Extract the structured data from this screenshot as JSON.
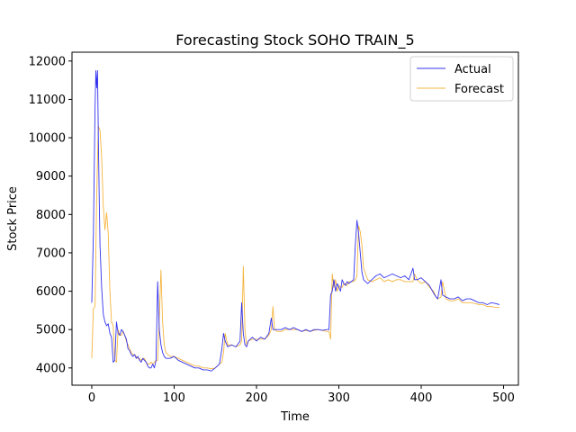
{
  "chart_data": {
    "type": "line",
    "title": "Forecasting Stock SOHO TRAIN_5",
    "xlabel": "Time",
    "ylabel": "Stock Price",
    "xlim": [
      -24,
      518
    ],
    "ylim": [
      3550,
      12230
    ],
    "xticks": [
      0,
      100,
      200,
      300,
      400,
      500
    ],
    "yticks": [
      4000,
      5000,
      6000,
      7000,
      8000,
      9000,
      10000,
      11000,
      12000
    ],
    "grid": false,
    "legend_position": "top-right",
    "series": [
      {
        "name": "Actual",
        "color": "#3333ee",
        "points": [
          [
            0,
            5700
          ],
          [
            2,
            7500
          ],
          [
            4,
            10800
          ],
          [
            5,
            11750
          ],
          [
            6,
            11300
          ],
          [
            7,
            11750
          ],
          [
            8,
            10000
          ],
          [
            9,
            8500
          ],
          [
            10,
            7200
          ],
          [
            12,
            6100
          ],
          [
            14,
            5400
          ],
          [
            16,
            5200
          ],
          [
            18,
            5100
          ],
          [
            20,
            5150
          ],
          [
            22,
            4900
          ],
          [
            24,
            4800
          ],
          [
            26,
            4150
          ],
          [
            28,
            4200
          ],
          [
            30,
            5200
          ],
          [
            32,
            4900
          ],
          [
            34,
            4850
          ],
          [
            36,
            5000
          ],
          [
            38,
            4950
          ],
          [
            40,
            4850
          ],
          [
            42,
            4750
          ],
          [
            44,
            4500
          ],
          [
            46,
            4450
          ],
          [
            48,
            4350
          ],
          [
            50,
            4300
          ],
          [
            52,
            4350
          ],
          [
            54,
            4250
          ],
          [
            56,
            4300
          ],
          [
            58,
            4200
          ],
          [
            60,
            4150
          ],
          [
            62,
            4250
          ],
          [
            64,
            4200
          ],
          [
            66,
            4150
          ],
          [
            68,
            4050
          ],
          [
            70,
            4000
          ],
          [
            72,
            4000
          ],
          [
            74,
            4100
          ],
          [
            76,
            4000
          ],
          [
            78,
            4200
          ],
          [
            80,
            6250
          ],
          [
            82,
            5000
          ],
          [
            84,
            4600
          ],
          [
            86,
            4400
          ],
          [
            88,
            4300
          ],
          [
            90,
            4250
          ],
          [
            95,
            4250
          ],
          [
            100,
            4300
          ],
          [
            105,
            4200
          ],
          [
            110,
            4150
          ],
          [
            115,
            4100
          ],
          [
            120,
            4050
          ],
          [
            125,
            4000
          ],
          [
            130,
            4000
          ],
          [
            135,
            3950
          ],
          [
            140,
            3950
          ],
          [
            145,
            3920
          ],
          [
            150,
            4000
          ],
          [
            155,
            4100
          ],
          [
            158,
            4500
          ],
          [
            160,
            4900
          ],
          [
            162,
            4700
          ],
          [
            165,
            4550
          ],
          [
            170,
            4600
          ],
          [
            175,
            4550
          ],
          [
            180,
            4700
          ],
          [
            182,
            5700
          ],
          [
            184,
            4900
          ],
          [
            186,
            4600
          ],
          [
            188,
            4550
          ],
          [
            190,
            4700
          ],
          [
            195,
            4800
          ],
          [
            200,
            4700
          ],
          [
            205,
            4800
          ],
          [
            210,
            4750
          ],
          [
            215,
            4900
          ],
          [
            218,
            5300
          ],
          [
            220,
            5000
          ],
          [
            225,
            5000
          ],
          [
            230,
            5000
          ],
          [
            235,
            5050
          ],
          [
            240,
            5000
          ],
          [
            245,
            5050
          ],
          [
            250,
            5000
          ],
          [
            255,
            4950
          ],
          [
            260,
            5000
          ],
          [
            265,
            4950
          ],
          [
            270,
            5000
          ],
          [
            275,
            5000
          ],
          [
            280,
            4980
          ],
          [
            285,
            5000
          ],
          [
            288,
            5000
          ],
          [
            290,
            5900
          ],
          [
            292,
            6000
          ],
          [
            294,
            6300
          ],
          [
            296,
            6000
          ],
          [
            298,
            6200
          ],
          [
            300,
            6100
          ],
          [
            302,
            6000
          ],
          [
            304,
            6300
          ],
          [
            306,
            6200
          ],
          [
            308,
            6150
          ],
          [
            310,
            6250
          ],
          [
            312,
            6200
          ],
          [
            315,
            6250
          ],
          [
            318,
            6300
          ],
          [
            320,
            7200
          ],
          [
            322,
            7850
          ],
          [
            324,
            7500
          ],
          [
            326,
            7000
          ],
          [
            328,
            6500
          ],
          [
            330,
            6300
          ],
          [
            335,
            6200
          ],
          [
            340,
            6300
          ],
          [
            345,
            6400
          ],
          [
            350,
            6450
          ],
          [
            355,
            6350
          ],
          [
            360,
            6400
          ],
          [
            365,
            6450
          ],
          [
            370,
            6400
          ],
          [
            375,
            6350
          ],
          [
            380,
            6400
          ],
          [
            385,
            6300
          ],
          [
            390,
            6600
          ],
          [
            392,
            6300
          ],
          [
            395,
            6300
          ],
          [
            400,
            6350
          ],
          [
            405,
            6250
          ],
          [
            410,
            6150
          ],
          [
            415,
            5950
          ],
          [
            418,
            5850
          ],
          [
            420,
            5800
          ],
          [
            424,
            6300
          ],
          [
            426,
            5900
          ],
          [
            430,
            5850
          ],
          [
            435,
            5800
          ],
          [
            440,
            5800
          ],
          [
            445,
            5850
          ],
          [
            450,
            5750
          ],
          [
            455,
            5800
          ],
          [
            460,
            5800
          ],
          [
            465,
            5750
          ],
          [
            470,
            5700
          ],
          [
            475,
            5700
          ],
          [
            480,
            5650
          ],
          [
            485,
            5700
          ],
          [
            490,
            5680
          ],
          [
            495,
            5650
          ]
        ]
      },
      {
        "name": "Forecast",
        "color": "#f5b540",
        "points": [
          [
            0,
            4250
          ],
          [
            2,
            5550
          ],
          [
            4,
            5600
          ],
          [
            6,
            8500
          ],
          [
            8,
            10300
          ],
          [
            10,
            10200
          ],
          [
            12,
            9500
          ],
          [
            14,
            8200
          ],
          [
            16,
            7600
          ],
          [
            18,
            8050
          ],
          [
            20,
            7500
          ],
          [
            22,
            6000
          ],
          [
            24,
            5200
          ],
          [
            26,
            5100
          ],
          [
            28,
            4200
          ],
          [
            30,
            4150
          ],
          [
            32,
            5000
          ],
          [
            34,
            4850
          ],
          [
            36,
            4850
          ],
          [
            38,
            4950
          ],
          [
            40,
            4850
          ],
          [
            42,
            4700
          ],
          [
            44,
            4600
          ],
          [
            46,
            4500
          ],
          [
            48,
            4400
          ],
          [
            50,
            4350
          ],
          [
            52,
            4350
          ],
          [
            54,
            4300
          ],
          [
            56,
            4250
          ],
          [
            58,
            4250
          ],
          [
            60,
            4200
          ],
          [
            62,
            4250
          ],
          [
            64,
            4250
          ],
          [
            66,
            4150
          ],
          [
            68,
            4100
          ],
          [
            70,
            4100
          ],
          [
            72,
            4150
          ],
          [
            74,
            4100
          ],
          [
            76,
            4150
          ],
          [
            78,
            4200
          ],
          [
            80,
            4200
          ],
          [
            82,
            5300
          ],
          [
            84,
            6550
          ],
          [
            86,
            5200
          ],
          [
            88,
            4600
          ],
          [
            90,
            4400
          ],
          [
            95,
            4300
          ],
          [
            100,
            4300
          ],
          [
            105,
            4250
          ],
          [
            110,
            4200
          ],
          [
            115,
            4150
          ],
          [
            120,
            4100
          ],
          [
            125,
            4050
          ],
          [
            130,
            4050
          ],
          [
            135,
            4000
          ],
          [
            140,
            4000
          ],
          [
            145,
            3980
          ],
          [
            150,
            4000
          ],
          [
            155,
            4100
          ],
          [
            158,
            4150
          ],
          [
            160,
            4400
          ],
          [
            162,
            4900
          ],
          [
            165,
            4600
          ],
          [
            170,
            4600
          ],
          [
            175,
            4550
          ],
          [
            180,
            4600
          ],
          [
            182,
            4700
          ],
          [
            184,
            6650
          ],
          [
            186,
            5000
          ],
          [
            188,
            4600
          ],
          [
            190,
            4700
          ],
          [
            195,
            4750
          ],
          [
            200,
            4750
          ],
          [
            205,
            4750
          ],
          [
            210,
            4750
          ],
          [
            215,
            4850
          ],
          [
            218,
            5000
          ],
          [
            220,
            5600
          ],
          [
            222,
            5000
          ],
          [
            225,
            4950
          ],
          [
            230,
            4950
          ],
          [
            235,
            5000
          ],
          [
            240,
            5000
          ],
          [
            245,
            5000
          ],
          [
            250,
            5000
          ],
          [
            255,
            4950
          ],
          [
            260,
            4980
          ],
          [
            265,
            4950
          ],
          [
            270,
            4980
          ],
          [
            275,
            5000
          ],
          [
            280,
            4980
          ],
          [
            285,
            4950
          ],
          [
            288,
            4950
          ],
          [
            290,
            4750
          ],
          [
            292,
            6450
          ],
          [
            294,
            6100
          ],
          [
            296,
            6300
          ],
          [
            298,
            6000
          ],
          [
            300,
            6150
          ],
          [
            302,
            6100
          ],
          [
            304,
            6100
          ],
          [
            306,
            6200
          ],
          [
            308,
            6200
          ],
          [
            310,
            6150
          ],
          [
            312,
            6250
          ],
          [
            315,
            6250
          ],
          [
            318,
            6250
          ],
          [
            320,
            6300
          ],
          [
            322,
            6400
          ],
          [
            324,
            7700
          ],
          [
            326,
            7550
          ],
          [
            328,
            7200
          ],
          [
            330,
            6600
          ],
          [
            335,
            6300
          ],
          [
            340,
            6250
          ],
          [
            345,
            6300
          ],
          [
            350,
            6350
          ],
          [
            355,
            6250
          ],
          [
            360,
            6300
          ],
          [
            365,
            6250
          ],
          [
            370,
            6300
          ],
          [
            375,
            6300
          ],
          [
            380,
            6250
          ],
          [
            385,
            6250
          ],
          [
            390,
            6250
          ],
          [
            392,
            6450
          ],
          [
            395,
            6300
          ],
          [
            400,
            6200
          ],
          [
            405,
            6250
          ],
          [
            410,
            6100
          ],
          [
            415,
            6000
          ],
          [
            418,
            5850
          ],
          [
            420,
            5800
          ],
          [
            424,
            5850
          ],
          [
            426,
            6250
          ],
          [
            430,
            5800
          ],
          [
            435,
            5750
          ],
          [
            440,
            5750
          ],
          [
            445,
            5800
          ],
          [
            450,
            5700
          ],
          [
            455,
            5700
          ],
          [
            460,
            5700
          ],
          [
            465,
            5680
          ],
          [
            470,
            5650
          ],
          [
            475,
            5650
          ],
          [
            480,
            5600
          ],
          [
            485,
            5600
          ],
          [
            490,
            5580
          ],
          [
            495,
            5580
          ]
        ]
      }
    ]
  }
}
